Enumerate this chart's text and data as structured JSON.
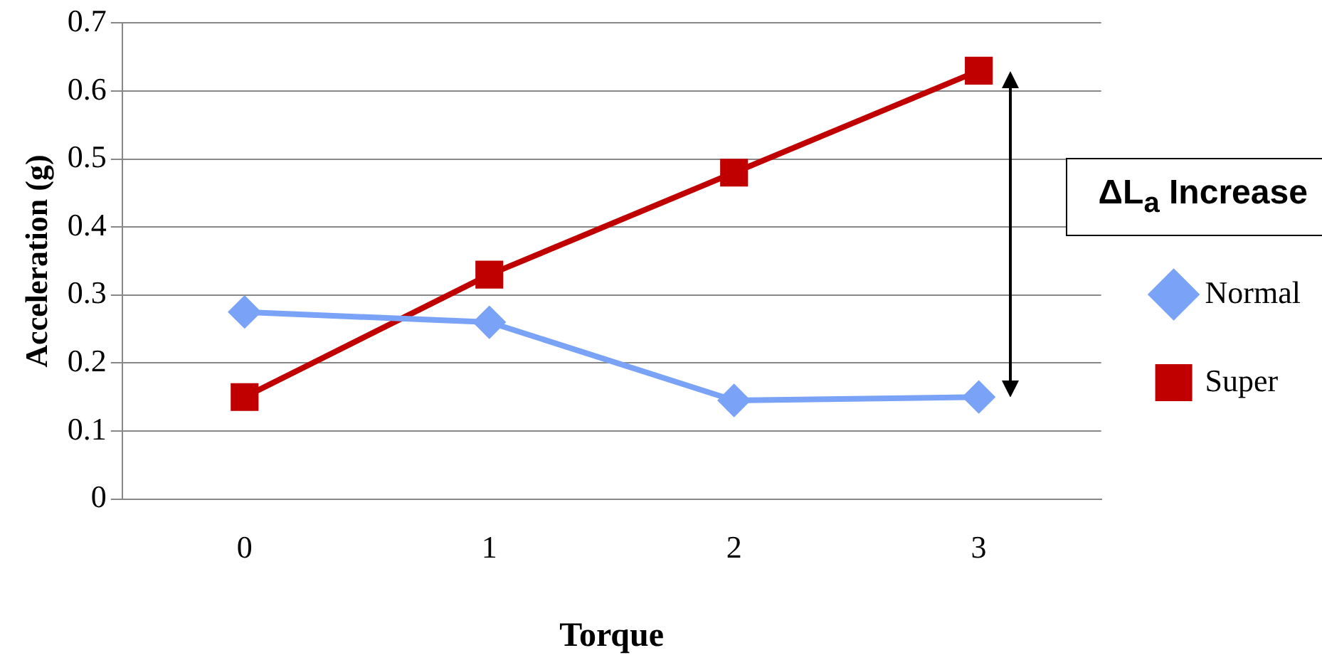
{
  "chart_data": {
    "type": "line",
    "xlabel": "Torque",
    "ylabel": "Acceleration (g)",
    "categories": [
      "0",
      "1",
      "2",
      "3"
    ],
    "series": [
      {
        "name": "Normal",
        "color": "#7aa3f7",
        "values": [
          0.275,
          0.26,
          0.145,
          0.15
        ],
        "marker": "diamond"
      },
      {
        "name": "Super",
        "color": "#c00000",
        "values": [
          0.15,
          0.33,
          0.48,
          0.63
        ],
        "marker": "square"
      }
    ],
    "ylim": [
      0,
      0.7
    ],
    "yticks": [
      0,
      0.1,
      0.2,
      0.3,
      0.4,
      0.5,
      0.6,
      0.7
    ],
    "grid": "y",
    "legend": "right",
    "annotations": [
      "ΔL$_{a}$ Increase"
    ]
  }
}
